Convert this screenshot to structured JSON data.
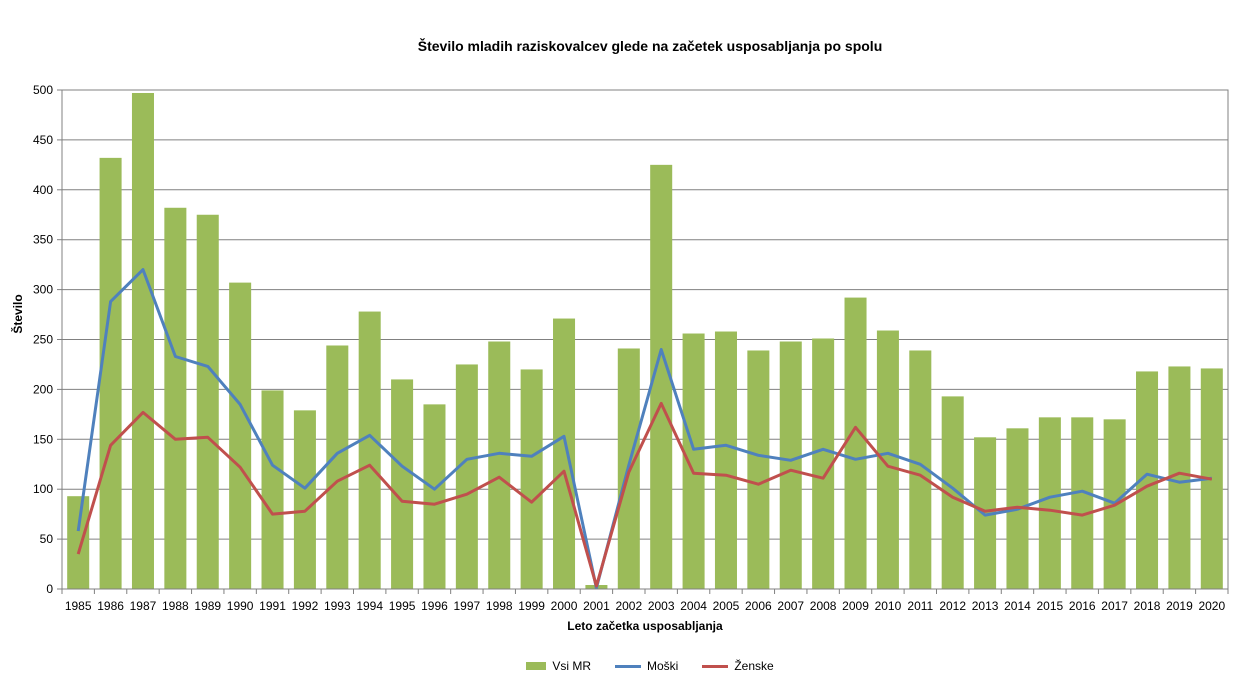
{
  "chart_data": {
    "type": "bar",
    "title": "Število mladih raziskovalcev glede na začetek usposabljanja  po spolu",
    "xlabel": "Leto začetka usposabljanja",
    "ylabel": "Število",
    "ylim": [
      0,
      500
    ],
    "yticks": [
      0,
      50,
      100,
      150,
      200,
      250,
      300,
      350,
      400,
      450,
      500
    ],
    "grid": true,
    "legend_position": "bottom",
    "categories": [
      "1985",
      "1986",
      "1987",
      "1988",
      "1989",
      "1990",
      "1991",
      "1992",
      "1993",
      "1994",
      "1995",
      "1996",
      "1997",
      "1998",
      "1999",
      "2000",
      "2001",
      "2002",
      "2003",
      "2004",
      "2005",
      "2006",
      "2007",
      "2008",
      "2009",
      "2010",
      "2011",
      "2012",
      "2013",
      "2014",
      "2015",
      "2016",
      "2017",
      "2018",
      "2019",
      "2020"
    ],
    "series": [
      {
        "name": "Vsi MR",
        "kind": "bar",
        "color": "#9BBB59",
        "values": [
          93,
          432,
          497,
          382,
          375,
          307,
          199,
          179,
          244,
          278,
          210,
          185,
          225,
          248,
          220,
          271,
          4,
          241,
          425,
          256,
          258,
          239,
          248,
          251,
          292,
          259,
          239,
          193,
          152,
          161,
          172,
          172,
          170,
          218,
          223,
          221
        ]
      },
      {
        "name": "Moški",
        "kind": "line",
        "color": "#4F81BD",
        "values": [
          58,
          288,
          320,
          233,
          223,
          185,
          124,
          101,
          136,
          154,
          123,
          100,
          130,
          136,
          133,
          153,
          1,
          124,
          240,
          140,
          144,
          134,
          129,
          140,
          130,
          136,
          125,
          101,
          74,
          80,
          92,
          98,
          86,
          115,
          107,
          111
        ]
      },
      {
        "name": "Ženske",
        "kind": "line",
        "color": "#C0504D",
        "values": [
          35,
          144,
          177,
          150,
          152,
          122,
          75,
          78,
          108,
          124,
          88,
          85,
          95,
          112,
          87,
          118,
          3,
          117,
          186,
          116,
          114,
          105,
          119,
          111,
          162,
          123,
          114,
          92,
          78,
          82,
          79,
          74,
          84,
          103,
          116,
          110
        ]
      }
    ]
  }
}
